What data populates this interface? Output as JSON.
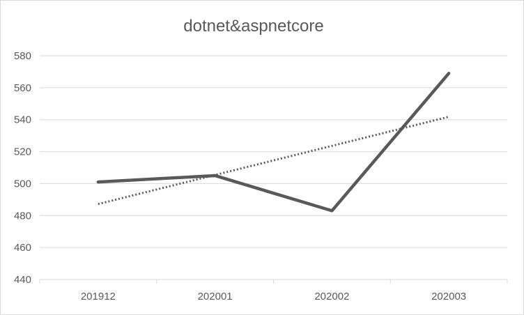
{
  "chart_data": {
    "type": "line",
    "title": "dotnet&aspnetcore",
    "xlabel": "",
    "ylabel": "",
    "categories": [
      "201912",
      "202001",
      "202002",
      "202003"
    ],
    "series": [
      {
        "values": [
          501,
          505,
          483,
          569
        ],
        "color": "#595959"
      }
    ],
    "trendline": {
      "type": "linear",
      "style": "dotted",
      "color": "#595959"
    },
    "ylim": [
      440,
      580
    ],
    "yticks": [
      "440",
      "460",
      "480",
      "500",
      "520",
      "540",
      "560",
      "580"
    ],
    "grid": true,
    "legend": "none"
  }
}
